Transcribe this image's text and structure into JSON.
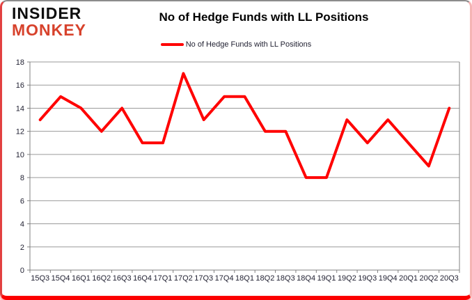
{
  "logo": {
    "line1": "INSIDER",
    "line2": "MONKEY",
    "line1_color": "#0d0d0d",
    "line2_color": "#d7422c"
  },
  "header": {
    "title": "No of Hedge Funds with LL Positions"
  },
  "legend": {
    "items": [
      {
        "label": "No of Hedge Funds with LL Positions",
        "color": "#ff0000"
      }
    ]
  },
  "colors": {
    "series_red": "#ff0000",
    "gridline": "#9a9a9a",
    "axis": "#808080",
    "tick_label": "#1f1f30",
    "frame_bottom_red": "#fb0000",
    "frame_right_pink": "#f5b4b4",
    "frame_top_gray": "#8c8c8c",
    "frame_left_red": "#e24040"
  },
  "chart_data": {
    "type": "line",
    "title": "No of Hedge Funds with LL Positions",
    "categories": [
      "15Q3",
      "15Q4",
      "16Q1",
      "16Q2",
      "16Q3",
      "16Q4",
      "17Q1",
      "17Q2",
      "17Q3",
      "17Q4",
      "18Q1",
      "18Q2",
      "18Q3",
      "18Q4",
      "19Q1",
      "19Q2",
      "19Q3",
      "19Q4",
      "20Q1",
      "20Q2",
      "20Q3"
    ],
    "series": [
      {
        "name": "No of Hedge Funds with LL Positions",
        "color": "#ff0000",
        "values": [
          13,
          15,
          14,
          12,
          14,
          11,
          11,
          17,
          13,
          15,
          15,
          12,
          12,
          8,
          8,
          13,
          11,
          13,
          11,
          9,
          14
        ]
      }
    ],
    "xlabel": "",
    "ylabel": "",
    "ylim": [
      0,
      18
    ],
    "ytick_step": 2,
    "grid": true,
    "legend_position": "top-center"
  }
}
